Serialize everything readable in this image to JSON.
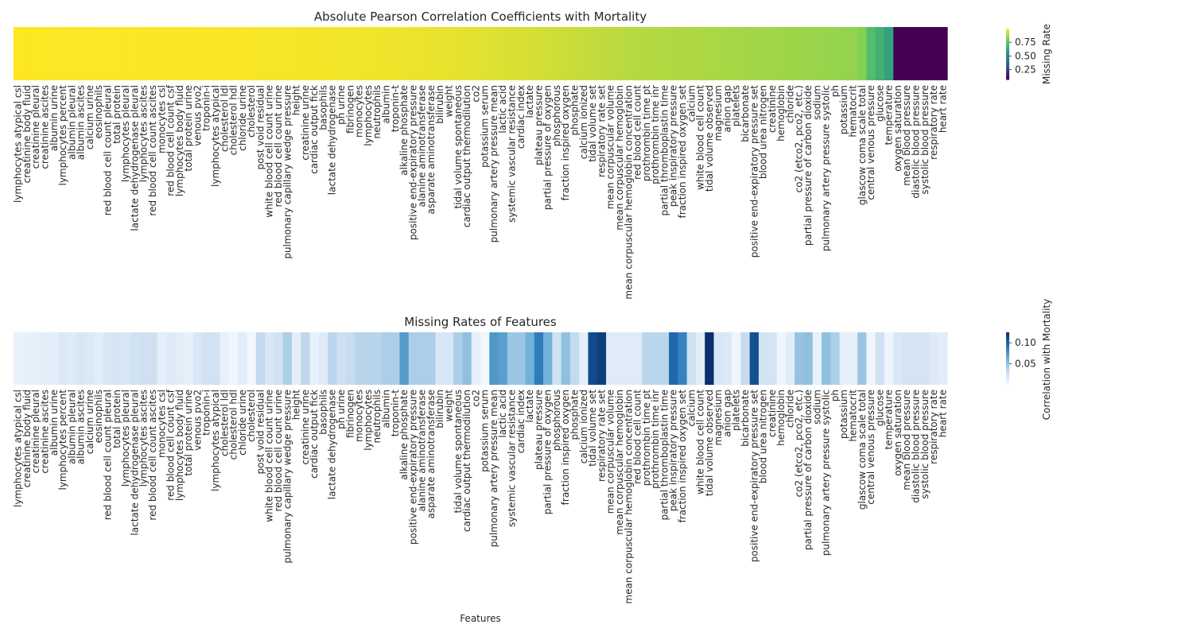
{
  "chart_data": [
    {
      "type": "heatmap",
      "title": "Absolute Pearson Correlation Coefficients with Mortality",
      "xlabel": "",
      "colormap": "viridis",
      "colorbar": {
        "label": "Missing Rate",
        "range": [
          0.07,
          1.0
        ],
        "ticks": [
          0.25,
          0.5,
          0.75
        ]
      },
      "categories": [
        "lymphocytes atypical csl",
        "creatinine body fluid",
        "creatinine pleural",
        "creatinine ascites",
        "albumin urine",
        "lymphocytes percent",
        "albumin pleural",
        "albumin ascites",
        "calcium urine",
        "eosinophils",
        "red blood cell count pleural",
        "total protein",
        "lymphocytes pleural",
        "lactate dehydrogenase pleural",
        "lymphocytes ascites",
        "red blood cell count ascites",
        "monocytes csl",
        "red blood cell count csf",
        "lymphocytes body fluid",
        "total protein urine",
        "venous pvo2",
        "troponin-i",
        "lymphocytes atypical",
        "cholesterol ldl",
        "cholesterol hdl",
        "chloride urine",
        "cholesterol",
        "post void residual",
        "white blood cell count urine",
        "red blood cell count urine",
        "pulmonary capillary wedge pressure",
        "height",
        "creatinine urine",
        "cardiac output fick",
        "basophils",
        "lactate dehydrogenase",
        "ph urine",
        "fibrinogen",
        "monocytes",
        "lymphocytes",
        "neutrophils",
        "albumin",
        "troponin-t",
        "alkaline phosphate",
        "positive end-expiratory pressure",
        "alanine aminotransferase",
        "asparate aminotransferase",
        "bilirubin",
        "weight",
        "tidal volume spontaneous",
        "cardiac output thermodilution",
        "co2",
        "potassium serum",
        "pulmonary artery pressure mean",
        "lactic acid",
        "systemic vascular resistance",
        "cardiac index",
        "lactate",
        "plateau pressure",
        "partial pressure of oxygen",
        "phosphorous",
        "fraction inspired oxygen",
        "phosphate",
        "calcium ionized",
        "tidal volume set",
        "respiratory rate set",
        "mean corpuscular volume",
        "mean corpuscular hemoglobin",
        "mean corpuscular hemoglobin concentration",
        "red blood cell count",
        "prothrombin time pt",
        "prothrombin time inr",
        "partial thromboplastin time",
        "peak inspiratory pressure",
        "fraction inspired oxygen set",
        "calcium",
        "white blood cell count",
        "tidal volume observed",
        "magnesium",
        "anion gap",
        "platelets",
        "bicarbonate",
        "positive end-expiratory pressure set",
        "blood urea nitrogen",
        "creatinine",
        "hemoglobin",
        "chloride",
        "co2 (etco2, pco2, etc.)",
        "partial pressure of carbon dioxide",
        "sodium",
        "pulmonary artery pressure systolic",
        "ph",
        "potassium",
        "hematocrit",
        "glascow coma scale total",
        "central venous pressure",
        "glucose",
        "temperature",
        "oxygen saturation",
        "mean blood pressure",
        "diastolic blood pressure",
        "systolic blood pressure",
        "respiratory rate",
        "heart rate"
      ],
      "values": [
        1.0,
        0.999,
        0.999,
        0.999,
        0.998,
        0.998,
        0.998,
        0.998,
        0.998,
        0.997,
        0.997,
        0.997,
        0.997,
        0.997,
        0.996,
        0.996,
        0.996,
        0.996,
        0.995,
        0.995,
        0.995,
        0.994,
        0.994,
        0.993,
        0.993,
        0.992,
        0.992,
        0.991,
        0.99,
        0.99,
        0.99,
        0.989,
        0.988,
        0.988,
        0.987,
        0.986,
        0.985,
        0.985,
        0.984,
        0.983,
        0.982,
        0.98,
        0.979,
        0.977,
        0.975,
        0.973,
        0.972,
        0.97,
        0.968,
        0.966,
        0.963,
        0.96,
        0.957,
        0.954,
        0.951,
        0.948,
        0.945,
        0.942,
        0.938,
        0.934,
        0.93,
        0.926,
        0.922,
        0.918,
        0.914,
        0.91,
        0.906,
        0.902,
        0.898,
        0.895,
        0.893,
        0.891,
        0.889,
        0.887,
        0.885,
        0.883,
        0.881,
        0.879,
        0.877,
        0.875,
        0.873,
        0.871,
        0.869,
        0.867,
        0.865,
        0.863,
        0.861,
        0.859,
        0.857,
        0.855,
        0.852,
        0.85,
        0.847,
        0.845,
        0.82,
        0.72,
        0.66,
        0.6,
        0.07,
        0.07,
        0.07,
        0.07,
        0.07,
        0.06
      ]
    },
    {
      "type": "heatmap",
      "title": "Missing Rates of Features",
      "xlabel": "Features",
      "colormap": "Blues",
      "colorbar": {
        "label": "Correlation with Mortality",
        "range": [
          0.0,
          0.125
        ],
        "ticks": [
          0.05,
          0.1
        ]
      },
      "categories": [
        "lymphocytes atypical csl",
        "creatinine body fluid",
        "creatinine pleural",
        "creatinine ascites",
        "albumin urine",
        "lymphocytes percent",
        "albumin pleural",
        "albumin ascites",
        "calcium urine",
        "eosinophils",
        "red blood cell count pleural",
        "total protein",
        "lymphocytes pleural",
        "lactate dehydrogenase pleural",
        "lymphocytes ascites",
        "red blood cell count ascites",
        "monocytes csl",
        "red blood cell count csf",
        "lymphocytes body fluid",
        "total protein urine",
        "venous pvo2",
        "troponin-i",
        "lymphocytes atypical",
        "cholesterol ldl",
        "cholesterol hdl",
        "chloride urine",
        "cholesterol",
        "post void residual",
        "white blood cell count urine",
        "red blood cell count urine",
        "pulmonary capillary wedge pressure",
        "height",
        "creatinine urine",
        "cardiac output fick",
        "basophils",
        "lactate dehydrogenase",
        "ph urine",
        "fibrinogen",
        "monocytes",
        "lymphocytes",
        "neutrophils",
        "albumin",
        "troponin-t",
        "alkaline phosphate",
        "positive end-expiratory pressure",
        "alanine aminotransferase",
        "asparate aminotransferase",
        "bilirubin",
        "weight",
        "tidal volume spontaneous",
        "cardiac output thermodilution",
        "co2",
        "potassium serum",
        "pulmonary artery pressure mean",
        "lactic acid",
        "systemic vascular resistance",
        "cardiac index",
        "lactate",
        "plateau pressure",
        "partial pressure of oxygen",
        "phosphorous",
        "fraction inspired oxygen",
        "phosphate",
        "calcium ionized",
        "tidal volume set",
        "respiratory rate set",
        "mean corpuscular volume",
        "mean corpuscular hemoglobin",
        "mean corpuscular hemoglobin concentration",
        "red blood cell count",
        "prothrombin time pt",
        "prothrombin time inr",
        "partial thromboplastin time",
        "peak inspiratory pressure",
        "fraction inspired oxygen set",
        "calcium",
        "white blood cell count",
        "tidal volume observed",
        "magnesium",
        "anion gap",
        "platelets",
        "bicarbonate",
        "positive end-expiratory pressure set",
        "blood urea nitrogen",
        "creatinine",
        "hemoglobin",
        "chloride",
        "co2 (etco2, pco2, etc.)",
        "partial pressure of carbon dioxide",
        "sodium",
        "pulmonary artery pressure systolic",
        "ph",
        "potassium",
        "hematocrit",
        "glascow coma scale total",
        "central venous pressure",
        "glucose",
        "temperature",
        "oxygen saturation",
        "mean blood pressure",
        "diastolic blood pressure",
        "systolic blood pressure",
        "respiratory rate",
        "heart rate"
      ],
      "values": [
        0.008,
        0.01,
        0.012,
        0.014,
        0.012,
        0.018,
        0.016,
        0.02,
        0.018,
        0.014,
        0.02,
        0.022,
        0.02,
        0.024,
        0.026,
        0.026,
        0.012,
        0.016,
        0.014,
        0.01,
        0.02,
        0.024,
        0.024,
        0.01,
        0.006,
        0.014,
        0.004,
        0.032,
        0.02,
        0.024,
        0.04,
        0.012,
        0.034,
        0.01,
        0.016,
        0.035,
        0.026,
        0.03,
        0.036,
        0.036,
        0.036,
        0.04,
        0.04,
        0.072,
        0.04,
        0.04,
        0.04,
        0.02,
        0.02,
        0.04,
        0.05,
        0.012,
        0.003,
        0.074,
        0.07,
        0.046,
        0.046,
        0.06,
        0.088,
        0.06,
        0.025,
        0.05,
        0.032,
        0.012,
        0.112,
        0.118,
        0.015,
        0.015,
        0.015,
        0.015,
        0.035,
        0.035,
        0.035,
        0.098,
        0.085,
        0.025,
        0.014,
        0.125,
        0.02,
        0.018,
        0.006,
        0.03,
        0.11,
        0.024,
        0.022,
        0.006,
        0.014,
        0.048,
        0.05,
        0.01,
        0.05,
        0.04,
        0.012,
        0.012,
        0.046,
        0.006,
        0.025,
        0.006,
        0.02,
        0.022,
        0.022,
        0.022,
        0.016,
        0.014
      ]
    }
  ]
}
